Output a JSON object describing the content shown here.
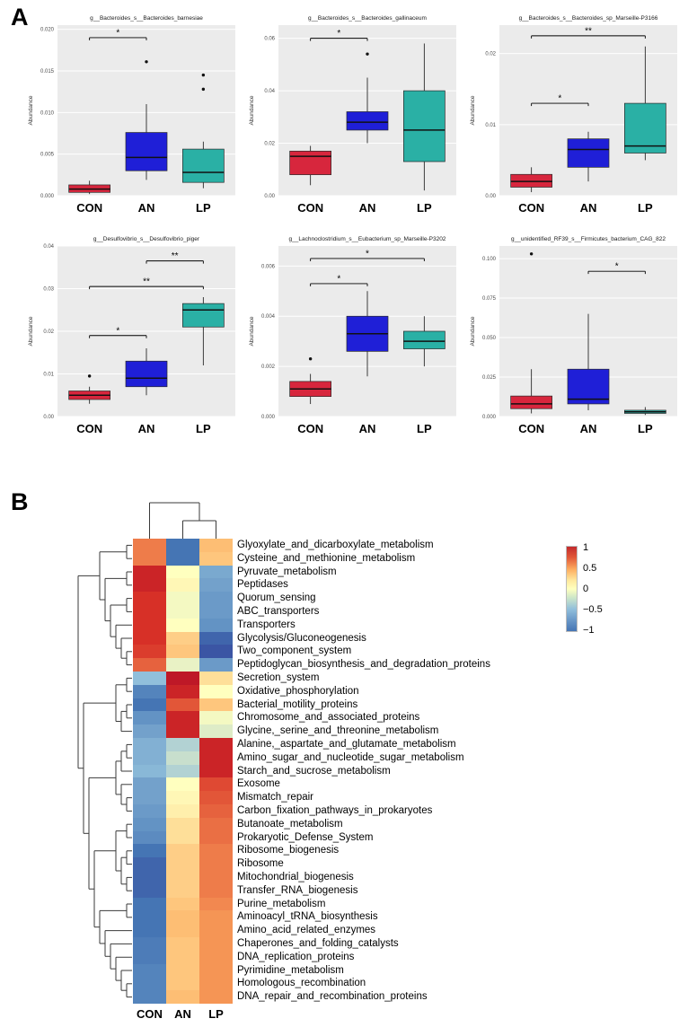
{
  "figure": {
    "panel_a_label": "A",
    "panel_b_label": "B"
  },
  "chart_data": [
    {
      "type": "box",
      "panel": "A",
      "ylabel": "Abundance",
      "groups": [
        "CON",
        "AN",
        "LP"
      ],
      "group_colors": {
        "CON": "#D7263D",
        "AN": "#1F1FD7",
        "LP": "#2AB0A5"
      },
      "plots": [
        {
          "title": "g__Bacteroides_s__Bacteroides_barnesiae",
          "ylim": [
            0,
            0.0205
          ],
          "yticks": [
            {
              "value": 0,
              "label": "0.000"
            },
            {
              "value": 0.005,
              "label": "0.005"
            },
            {
              "value": 0.01,
              "label": "0.010"
            },
            {
              "value": 0.015,
              "label": "0.015"
            },
            {
              "value": 0.02,
              "label": "0.020"
            }
          ],
          "boxes": [
            {
              "group": "CON",
              "lo": 0.0002,
              "q1": 0.0004,
              "median": 0.0008,
              "q3": 0.0013,
              "hi": 0.0018,
              "outliers": []
            },
            {
              "group": "AN",
              "lo": 0.0019,
              "q1": 0.003,
              "median": 0.0046,
              "q3": 0.0076,
              "hi": 0.011,
              "outliers": [
                0.0161
              ]
            },
            {
              "group": "LP",
              "lo": 0.0009,
              "q1": 0.0016,
              "median": 0.0028,
              "q3": 0.0056,
              "hi": 0.0065,
              "outliers": [
                0.0145,
                0.0128
              ]
            }
          ],
          "sig": [
            {
              "a": 0,
              "b": 1,
              "y": 0.019,
              "label": "*"
            }
          ]
        },
        {
          "title": "g__Bacteroides_s__Bacteroides_gallinaceum",
          "ylim": [
            0,
            0.065
          ],
          "yticks": [
            {
              "value": 0,
              "label": "0.00"
            },
            {
              "value": 0.02,
              "label": "0.02"
            },
            {
              "value": 0.04,
              "label": "0.04"
            },
            {
              "value": 0.06,
              "label": "0.06"
            }
          ],
          "boxes": [
            {
              "group": "CON",
              "lo": 0.004,
              "q1": 0.008,
              "median": 0.015,
              "q3": 0.017,
              "hi": 0.019,
              "outliers": []
            },
            {
              "group": "AN",
              "lo": 0.02,
              "q1": 0.025,
              "median": 0.028,
              "q3": 0.032,
              "hi": 0.045,
              "outliers": [
                0.054
              ]
            },
            {
              "group": "LP",
              "lo": 0.002,
              "q1": 0.013,
              "median": 0.025,
              "q3": 0.04,
              "hi": 0.058,
              "outliers": []
            }
          ],
          "sig": [
            {
              "a": 0,
              "b": 1,
              "y": 0.06,
              "label": "*"
            }
          ]
        },
        {
          "title": "g__Bacteroides_s__Bacteroides_sp_Marseille-P3166",
          "ylim": [
            0,
            0.024
          ],
          "yticks": [
            {
              "value": 0,
              "label": "0.00"
            },
            {
              "value": 0.01,
              "label": "0.01"
            },
            {
              "value": 0.02,
              "label": "0.02"
            }
          ],
          "boxes": [
            {
              "group": "CON",
              "lo": 0.0005,
              "q1": 0.0012,
              "median": 0.002,
              "q3": 0.003,
              "hi": 0.004,
              "outliers": []
            },
            {
              "group": "AN",
              "lo": 0.002,
              "q1": 0.004,
              "median": 0.0065,
              "q3": 0.008,
              "hi": 0.009,
              "outliers": []
            },
            {
              "group": "LP",
              "lo": 0.005,
              "q1": 0.006,
              "median": 0.007,
              "q3": 0.013,
              "hi": 0.021,
              "outliers": []
            }
          ],
          "sig": [
            {
              "a": 0,
              "b": 1,
              "y": 0.013,
              "label": "*"
            },
            {
              "a": 0,
              "b": 2,
              "y": 0.0225,
              "label": "**"
            }
          ]
        },
        {
          "title": "g__Desulfovibrio_s__Desulfovibrio_piger",
          "ylim": [
            0,
            0.04
          ],
          "yticks": [
            {
              "value": 0,
              "label": "0.00"
            },
            {
              "value": 0.01,
              "label": "0.01"
            },
            {
              "value": 0.02,
              "label": "0.02"
            },
            {
              "value": 0.03,
              "label": "0.03"
            },
            {
              "value": 0.04,
              "label": "0.04"
            }
          ],
          "boxes": [
            {
              "group": "CON",
              "lo": 0.003,
              "q1": 0.004,
              "median": 0.005,
              "q3": 0.006,
              "hi": 0.007,
              "outliers": [
                0.0095
              ]
            },
            {
              "group": "AN",
              "lo": 0.005,
              "q1": 0.007,
              "median": 0.009,
              "q3": 0.013,
              "hi": 0.016,
              "outliers": []
            },
            {
              "group": "LP",
              "lo": 0.012,
              "q1": 0.021,
              "median": 0.025,
              "q3": 0.0265,
              "hi": 0.028,
              "outliers": []
            }
          ],
          "sig": [
            {
              "a": 0,
              "b": 1,
              "y": 0.019,
              "label": "*"
            },
            {
              "a": 0,
              "b": 2,
              "y": 0.0305,
              "label": "**"
            },
            {
              "a": 1,
              "b": 2,
              "y": 0.0365,
              "label": "**"
            }
          ]
        },
        {
          "title": "g__Lachnoclostridium_s__Eubacterium_sp_Marseille-P3202",
          "ylim": [
            0,
            0.0068
          ],
          "yticks": [
            {
              "value": 0,
              "label": "0.000"
            },
            {
              "value": 0.002,
              "label": "0.002"
            },
            {
              "value": 0.004,
              "label": "0.004"
            },
            {
              "value": 0.006,
              "label": "0.006"
            }
          ],
          "boxes": [
            {
              "group": "CON",
              "lo": 0.0005,
              "q1": 0.0008,
              "median": 0.0011,
              "q3": 0.0014,
              "hi": 0.0017,
              "outliers": [
                0.0023
              ]
            },
            {
              "group": "AN",
              "lo": 0.0016,
              "q1": 0.0026,
              "median": 0.0033,
              "q3": 0.004,
              "hi": 0.005,
              "outliers": []
            },
            {
              "group": "LP",
              "lo": 0.002,
              "q1": 0.0027,
              "median": 0.003,
              "q3": 0.0034,
              "hi": 0.004,
              "outliers": []
            }
          ],
          "sig": [
            {
              "a": 0,
              "b": 1,
              "y": 0.0053,
              "label": "*"
            },
            {
              "a": 0,
              "b": 2,
              "y": 0.0063,
              "label": "*"
            }
          ]
        },
        {
          "title": "g__unidentified_RF39_s__Firmicutes_bacterium_CAG_822",
          "ylim": [
            0,
            0.108
          ],
          "yticks": [
            {
              "value": 0,
              "label": "0.000"
            },
            {
              "value": 0.025,
              "label": "0.025"
            },
            {
              "value": 0.05,
              "label": "0.050"
            },
            {
              "value": 0.075,
              "label": "0.075"
            },
            {
              "value": 0.1,
              "label": "0.100"
            }
          ],
          "boxes": [
            {
              "group": "CON",
              "lo": 0.002,
              "q1": 0.005,
              "median": 0.008,
              "q3": 0.013,
              "hi": 0.03,
              "outliers": [
                0.103
              ]
            },
            {
              "group": "AN",
              "lo": 0.004,
              "q1": 0.008,
              "median": 0.011,
              "q3": 0.03,
              "hi": 0.065,
              "outliers": []
            },
            {
              "group": "LP",
              "lo": 0.001,
              "q1": 0.002,
              "median": 0.003,
              "q3": 0.004,
              "hi": 0.006,
              "outliers": []
            }
          ],
          "sig": [
            {
              "a": 1,
              "b": 2,
              "y": 0.092,
              "label": "*"
            }
          ]
        }
      ]
    },
    {
      "type": "heatmap",
      "panel": "B",
      "columns": [
        "CON",
        "AN",
        "LP"
      ],
      "legend_ticks": [
        {
          "value": 1,
          "label": "1"
        },
        {
          "value": 0.5,
          "label": "0.5"
        },
        {
          "value": 0,
          "label": "0"
        },
        {
          "value": -0.5,
          "label": "−0.5"
        },
        {
          "value": -1,
          "label": "−1"
        }
      ],
      "colorscale_stops": [
        [
          -1.2,
          "#313695"
        ],
        [
          -1,
          "#4575B4"
        ],
        [
          -0.5,
          "#91BFDB"
        ],
        [
          0,
          "#FFFFBF"
        ],
        [
          0.5,
          "#FDAE61"
        ],
        [
          1,
          "#D73027"
        ],
        [
          1.2,
          "#A50026"
        ]
      ],
      "rows": [
        {
          "label": "Glyoxylate_and_dicarboxylate_metabolism",
          "values": [
            0.7,
            -1.0,
            0.4
          ]
        },
        {
          "label": "Cysteine_and_methionine_metabolism",
          "values": [
            0.7,
            -1.0,
            0.35
          ]
        },
        {
          "label": "Pyruvate_metabolism",
          "values": [
            1.05,
            0.0,
            -0.65
          ]
        },
        {
          "label": "Peptidases",
          "values": [
            1.05,
            0.05,
            -0.7
          ]
        },
        {
          "label": "Quorum_sensing",
          "values": [
            1.0,
            -0.05,
            -0.75
          ]
        },
        {
          "label": "ABC_transporters",
          "values": [
            1.0,
            -0.05,
            -0.75
          ]
        },
        {
          "label": "Transporters",
          "values": [
            1.0,
            0.0,
            -0.8
          ]
        },
        {
          "label": "Glycolysis/Gluconeogenesis",
          "values": [
            1.0,
            0.3,
            -1.05
          ]
        },
        {
          "label": "Two_component_system",
          "values": [
            0.95,
            0.35,
            -1.1
          ]
        },
        {
          "label": "Peptidoglycan_biosynthesis_and_degradation_proteins",
          "values": [
            0.8,
            -0.1,
            -0.75
          ]
        },
        {
          "label": "Secretion_system",
          "values": [
            -0.5,
            1.1,
            0.2
          ]
        },
        {
          "label": "Oxidative_phosphorylation",
          "values": [
            -0.9,
            1.05,
            0.0
          ]
        },
        {
          "label": "Bacterial_motility_proteins",
          "values": [
            -1.0,
            0.85,
            0.35
          ]
        },
        {
          "label": "Chromosome_and_associated_proteins",
          "values": [
            -0.8,
            1.05,
            -0.05
          ]
        },
        {
          "label": "Glycine,_serine_and_threonine_metabolism",
          "values": [
            -0.7,
            1.05,
            -0.15
          ]
        },
        {
          "label": "Alanine,_aspartate_and_glutamate_metabolism",
          "values": [
            -0.6,
            -0.35,
            1.05
          ]
        },
        {
          "label": "Amino_sugar_and_nucleotide_sugar_metabolism",
          "values": [
            -0.6,
            -0.25,
            1.05
          ]
        },
        {
          "label": "Starch_and_sucrose_metabolism",
          "values": [
            -0.55,
            -0.35,
            1.05
          ]
        },
        {
          "label": "Exosome",
          "values": [
            -0.7,
            0.0,
            0.9
          ]
        },
        {
          "label": "Mismatch_repair",
          "values": [
            -0.7,
            0.05,
            0.85
          ]
        },
        {
          "label": "Carbon_fixation_pathways_in_prokaryotes",
          "values": [
            -0.75,
            0.1,
            0.8
          ]
        },
        {
          "label": "Butanoate_metabolism",
          "values": [
            -0.8,
            0.2,
            0.75
          ]
        },
        {
          "label": "Prokaryotic_Defense_System",
          "values": [
            -0.85,
            0.2,
            0.75
          ]
        },
        {
          "label": "Ribosome_biogenesis",
          "values": [
            -1.0,
            0.3,
            0.7
          ]
        },
        {
          "label": "Ribosome",
          "values": [
            -1.05,
            0.3,
            0.7
          ]
        },
        {
          "label": "Mitochondrial_biogenesis",
          "values": [
            -1.05,
            0.3,
            0.7
          ]
        },
        {
          "label": "Transfer_RNA_biogenesis",
          "values": [
            -1.05,
            0.3,
            0.7
          ]
        },
        {
          "label": "Purine_metabolism",
          "values": [
            -1.0,
            0.35,
            0.65
          ]
        },
        {
          "label": "Aminoacyl_tRNA_biosynthesis",
          "values": [
            -1.0,
            0.4,
            0.6
          ]
        },
        {
          "label": "Amino_acid_related_enzymes",
          "values": [
            -1.0,
            0.4,
            0.6
          ]
        },
        {
          "label": "Chaperones_and_folding_catalysts",
          "values": [
            -0.95,
            0.35,
            0.6
          ]
        },
        {
          "label": "DNA_replication_proteins",
          "values": [
            -0.95,
            0.35,
            0.6
          ]
        },
        {
          "label": "Pyrimidine_metabolism",
          "values": [
            -0.9,
            0.35,
            0.6
          ]
        },
        {
          "label": "Homologous_recombination",
          "values": [
            -0.9,
            0.35,
            0.6
          ]
        },
        {
          "label": "DNA_repair_and_recombination_proteins",
          "values": [
            -0.9,
            0.4,
            0.6
          ]
        }
      ],
      "col_tree": [
        0,
        [
          1,
          2
        ]
      ],
      "row_tree": [
        [
          [
            0,
            1
          ],
          [
            [
              2,
              3
            ],
            [
              [
                4,
                5
              ],
              [
                6,
                [
                  7,
                  [
                    8,
                    9
                  ]
                ]
              ]
            ]
          ]
        ],
        [
          [
            [
              10,
              11
            ],
            [
              [
                12,
                13
              ],
              14
            ]
          ],
          [
            [
              [
                [
                  15,
                  16
                ],
                17
              ],
              [
                18,
                [
                  19,
                  20
                ]
              ]
            ],
            [
              [
                [
                  21,
                  22
                ],
                [
                  [
                    23,
                    24
                  ],
                  [
                    25,
                    26
                  ]
                ]
              ],
              [
                [
                  27,
                  28
                ],
                [
                  29,
                  [
                    30,
                    [
                      31,
                      [
                        32,
                        [
                          33,
                          34
                        ]
                      ]
                    ]
                  ]
                ]
              ]
            ]
          ]
        ]
      ]
    }
  ]
}
